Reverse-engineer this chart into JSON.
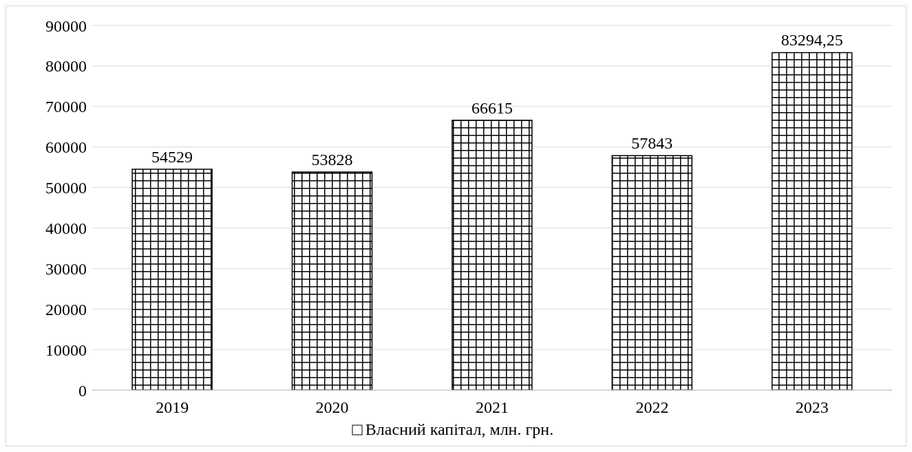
{
  "chart_data": {
    "type": "bar",
    "categories": [
      "2019",
      "2020",
      "2021",
      "2022",
      "2023"
    ],
    "series": [
      {
        "name": "Власний капітал, млн. грн.",
        "color": "#000000",
        "values": [
          54529,
          53828,
          66615,
          57843,
          83294.25
        ],
        "value_labels": [
          "54529",
          "53828",
          "66615",
          "57843",
          "83294,25"
        ]
      }
    ],
    "ylim": [
      0,
      90000
    ],
    "yticks": [
      0,
      10000,
      20000,
      30000,
      40000,
      50000,
      60000,
      70000,
      80000,
      90000
    ],
    "grid": "y",
    "legend": "bottom"
  }
}
